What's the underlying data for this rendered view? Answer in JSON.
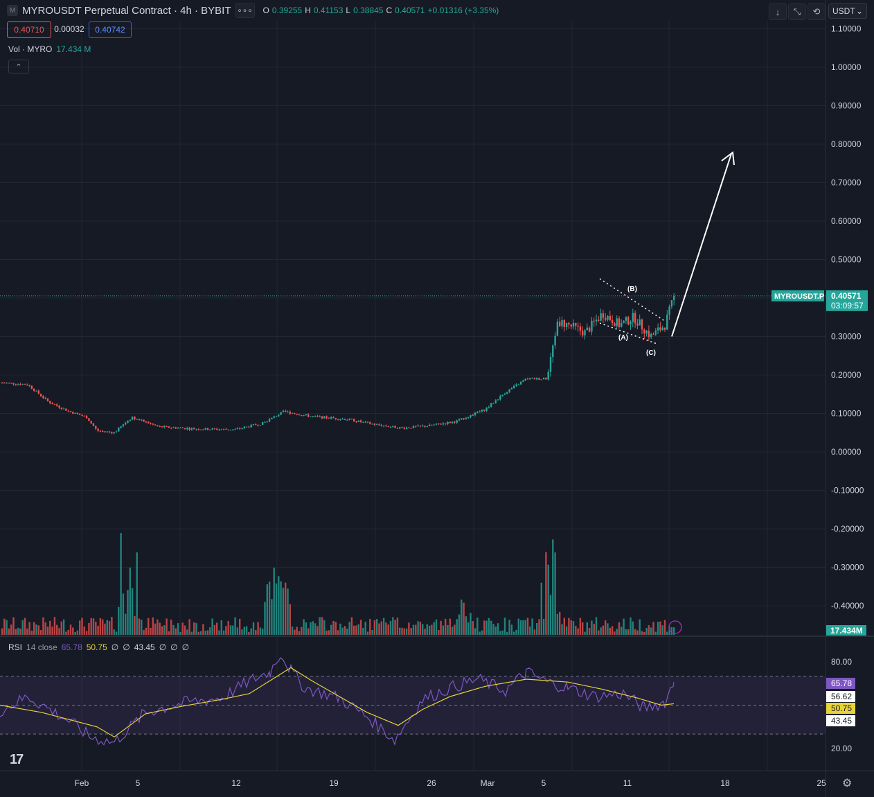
{
  "header": {
    "logo_icon": "M",
    "title": "MYROUSDT Perpetual Contract · 4h · BYBIT",
    "more_label": "∘∘∘",
    "ohlc": [
      {
        "k": "O",
        "v": "0.39255"
      },
      {
        "k": "H",
        "v": "0.41153"
      },
      {
        "k": "L",
        "v": "0.38845"
      },
      {
        "k": "C",
        "v": "0.40571"
      },
      {
        "k": "",
        "v": "+0.01316 (+3.35%)"
      }
    ],
    "sell_price": "0.40710",
    "spread": "0.00032",
    "buy_price": "0.40742"
  },
  "volume_legend": {
    "name": "Vol · MYRO",
    "value": "17.434 M"
  },
  "rsi_legend": {
    "name": "RSI",
    "params": "14 close",
    "rsi": "65.78",
    "ma": "50.75",
    "n1": "∅",
    "n2": "∅",
    "lower": "43.45",
    "n3": "∅",
    "n4": "∅",
    "n5": "∅"
  },
  "toolbar": {
    "currency": "USDT",
    "caret": "⌄",
    "collapse_icon": "⌃"
  },
  "colors": {
    "up": "#26a69a",
    "down": "#ef5350",
    "bg": "#161a25",
    "grid": "#232733",
    "rsi": "#7e57c2",
    "rsi_ma": "#e8d339",
    "accent_blue": "#2962ff"
  },
  "tv_logo": "17",
  "chart_data": {
    "type": "candlestick",
    "symbol_tag": "MYROUSDT.P",
    "last_price": "0.40571",
    "countdown": "03:09:57",
    "last_value": 0.40571,
    "price_ticks": [
      "1.10000",
      "1.00000",
      "0.90000",
      "0.80000",
      "0.70000",
      "0.60000",
      "0.50000",
      "0.40000",
      "0.30000",
      "0.20000",
      "0.10000",
      "0.00000",
      "-0.10000",
      "-0.20000",
      "-0.30000",
      "-0.40000"
    ],
    "price_range": [
      -0.47,
      1.12
    ],
    "volume_value_tag": "17.434M",
    "x_labels": [
      "Feb",
      "5",
      "12",
      "19",
      "26",
      "Mar",
      "5",
      "11",
      "18",
      "25"
    ],
    "rsi": {
      "ticks": [
        "80.00",
        "20.00"
      ],
      "range": [
        13,
        88
      ],
      "bands": [
        70,
        50,
        30
      ],
      "value_tags": {
        "rsi": "65.78",
        "upper": "56.62",
        "ma": "50.75",
        "lower": "43.45"
      },
      "path_points": [
        [
          0,
          46
        ],
        [
          40,
          56
        ],
        [
          100,
          39
        ],
        [
          130,
          28
        ],
        [
          165,
          24
        ],
        [
          210,
          45
        ],
        [
          270,
          52
        ],
        [
          320,
          55
        ],
        [
          365,
          68
        ],
        [
          390,
          73
        ],
        [
          405,
          86
        ],
        [
          420,
          74
        ],
        [
          440,
          62
        ],
        [
          490,
          55
        ],
        [
          530,
          42
        ],
        [
          570,
          26
        ],
        [
          610,
          54
        ],
        [
          650,
          62
        ],
        [
          690,
          68
        ],
        [
          730,
          60
        ],
        [
          760,
          73
        ],
        [
          790,
          66
        ],
        [
          820,
          62
        ],
        [
          860,
          56
        ],
        [
          900,
          58
        ],
        [
          930,
          48
        ],
        [
          960,
          52
        ],
        [
          973,
          66
        ]
      ],
      "ma_points": [
        [
          0,
          50
        ],
        [
          60,
          45
        ],
        [
          100,
          40
        ],
        [
          140,
          35
        ],
        [
          165,
          28
        ],
        [
          210,
          44
        ],
        [
          260,
          49
        ],
        [
          320,
          54
        ],
        [
          360,
          58
        ],
        [
          390,
          67
        ],
        [
          420,
          76
        ],
        [
          450,
          67
        ],
        [
          490,
          56
        ],
        [
          530,
          45
        ],
        [
          575,
          36
        ],
        [
          610,
          47
        ],
        [
          650,
          56
        ],
        [
          700,
          63
        ],
        [
          760,
          68
        ],
        [
          820,
          66
        ],
        [
          870,
          61
        ],
        [
          920,
          55
        ],
        [
          955,
          50
        ],
        [
          973,
          51
        ]
      ]
    },
    "annotations": {
      "labels": [
        "(A)",
        "(B)",
        "(C)"
      ]
    },
    "candle_anchors": [
      [
        0,
        0.18
      ],
      [
        40,
        0.175
      ],
      [
        70,
        0.13
      ],
      [
        100,
        0.105
      ],
      [
        125,
        0.09
      ],
      [
        140,
        0.055
      ],
      [
        165,
        0.05
      ],
      [
        190,
        0.09
      ],
      [
        230,
        0.065
      ],
      [
        280,
        0.06
      ],
      [
        340,
        0.058
      ],
      [
        380,
        0.075
      ],
      [
        410,
        0.105
      ],
      [
        450,
        0.092
      ],
      [
        500,
        0.085
      ],
      [
        545,
        0.07
      ],
      [
        580,
        0.062
      ],
      [
        620,
        0.068
      ],
      [
        660,
        0.08
      ],
      [
        700,
        0.11
      ],
      [
        730,
        0.155
      ],
      [
        760,
        0.19
      ],
      [
        790,
        0.19
      ],
      [
        805,
        0.34
      ],
      [
        820,
        0.33
      ],
      [
        845,
        0.31
      ],
      [
        870,
        0.36
      ],
      [
        895,
        0.33
      ],
      [
        915,
        0.35
      ],
      [
        940,
        0.3
      ],
      [
        960,
        0.33
      ],
      [
        974,
        0.4057
      ]
    ]
  }
}
